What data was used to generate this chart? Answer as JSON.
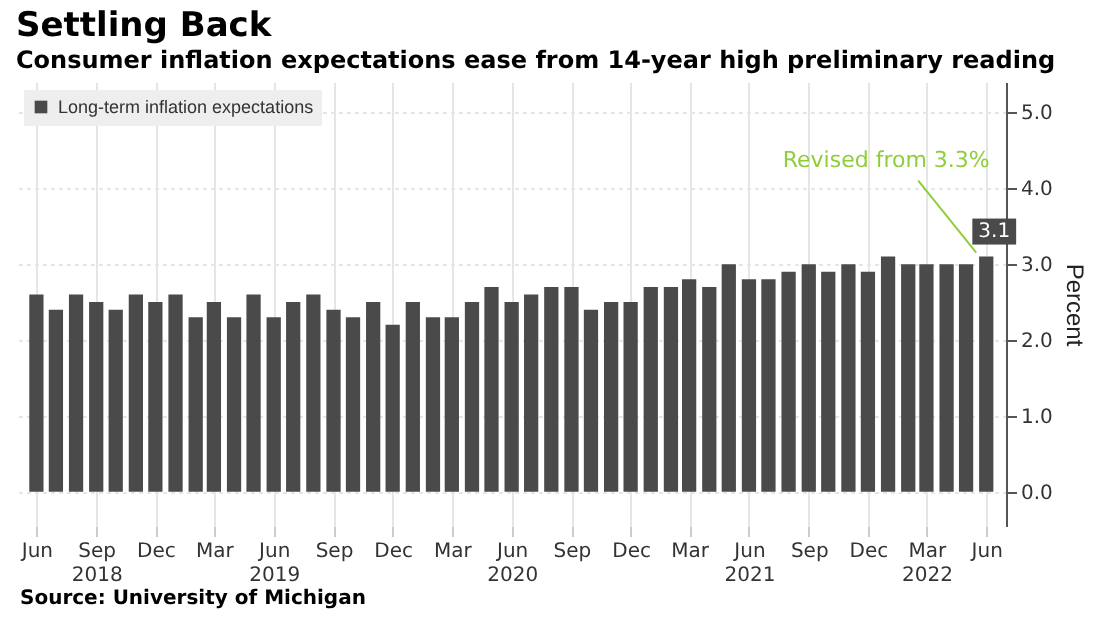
{
  "chart_data": {
    "type": "bar",
    "title": "Settling Back",
    "subtitle": "Consumer inflation expectations ease from 14-year high preliminary reading",
    "ylabel": "Percent",
    "x": [
      "2018-06",
      "2018-07",
      "2018-08",
      "2018-09",
      "2018-10",
      "2018-11",
      "2018-12",
      "2019-01",
      "2019-02",
      "2019-03",
      "2019-04",
      "2019-05",
      "2019-06",
      "2019-07",
      "2019-08",
      "2019-09",
      "2019-10",
      "2019-11",
      "2019-12",
      "2020-01",
      "2020-02",
      "2020-03",
      "2020-04",
      "2020-05",
      "2020-06",
      "2020-07",
      "2020-08",
      "2020-09",
      "2020-10",
      "2020-11",
      "2020-12",
      "2021-01",
      "2021-02",
      "2021-03",
      "2021-04",
      "2021-05",
      "2021-06",
      "2021-07",
      "2021-08",
      "2021-09",
      "2021-10",
      "2021-11",
      "2021-12",
      "2022-01",
      "2022-02",
      "2022-03",
      "2022-04",
      "2022-05",
      "2022-06"
    ],
    "series": [
      {
        "name": "Long-term inflation expectations",
        "color": "#4a4a4a",
        "values": [
          2.6,
          2.4,
          2.6,
          2.5,
          2.4,
          2.6,
          2.5,
          2.6,
          2.3,
          2.5,
          2.3,
          2.6,
          2.3,
          2.5,
          2.6,
          2.4,
          2.3,
          2.5,
          2.2,
          2.5,
          2.3,
          2.3,
          2.5,
          2.7,
          2.5,
          2.6,
          2.7,
          2.7,
          2.4,
          2.5,
          2.5,
          2.7,
          2.7,
          2.8,
          2.7,
          3.0,
          2.8,
          2.8,
          2.9,
          3.0,
          2.9,
          3.0,
          2.9,
          3.1,
          3.0,
          3.0,
          3.0,
          3.0,
          3.1
        ],
        "value_labels": [
          null,
          null,
          null,
          null,
          null,
          null,
          null,
          null,
          null,
          null,
          null,
          null,
          null,
          null,
          null,
          null,
          null,
          null,
          null,
          null,
          null,
          null,
          null,
          null,
          null,
          null,
          null,
          null,
          null,
          null,
          null,
          null,
          null,
          null,
          null,
          null,
          null,
          null,
          null,
          null,
          null,
          null,
          null,
          null,
          null,
          null,
          null,
          null,
          "3.1"
        ]
      }
    ],
    "xlim": [
      "2018-05-16",
      "2022-06-16"
    ],
    "ylim": [
      -0.45,
      5.4
    ],
    "yticks": [
      {
        "value": 0,
        "label": "0.0"
      },
      {
        "value": 1,
        "label": "1.0"
      },
      {
        "value": 2,
        "label": "2.0"
      },
      {
        "value": 3,
        "label": "3.0"
      },
      {
        "value": 4,
        "label": "4.0"
      },
      {
        "value": 5,
        "label": "5.0"
      }
    ],
    "xticks": [
      {
        "value": "2018-06",
        "label": "Jun"
      },
      {
        "value": "2018-09",
        "label": "Sep\n2018"
      },
      {
        "value": "2018-12",
        "label": "Dec"
      },
      {
        "value": "2019-03",
        "label": "Mar"
      },
      {
        "value": "2019-06",
        "label": "Jun\n2019"
      },
      {
        "value": "2019-09",
        "label": "Sep"
      },
      {
        "value": "2019-12",
        "label": "Dec"
      },
      {
        "value": "2020-03",
        "label": "Mar"
      },
      {
        "value": "2020-06",
        "label": "Jun\n2020"
      },
      {
        "value": "2020-09",
        "label": "Sep"
      },
      {
        "value": "2020-12",
        "label": "Dec"
      },
      {
        "value": "2021-03",
        "label": "Mar"
      },
      {
        "value": "2021-06",
        "label": "Jun\n2021"
      },
      {
        "value": "2021-09",
        "label": "Sep"
      },
      {
        "value": "2021-12",
        "label": "Dec"
      },
      {
        "value": "2022-03",
        "label": "Mar\n2022"
      },
      {
        "value": "2022-06",
        "label": "Jun"
      }
    ],
    "grid": true,
    "legend": "top left",
    "annotations": [
      {
        "text": "Revised from 3.3%",
        "x": "2022-06",
        "y": 3.1
      },
      "Source: University of Michigan"
    ]
  }
}
